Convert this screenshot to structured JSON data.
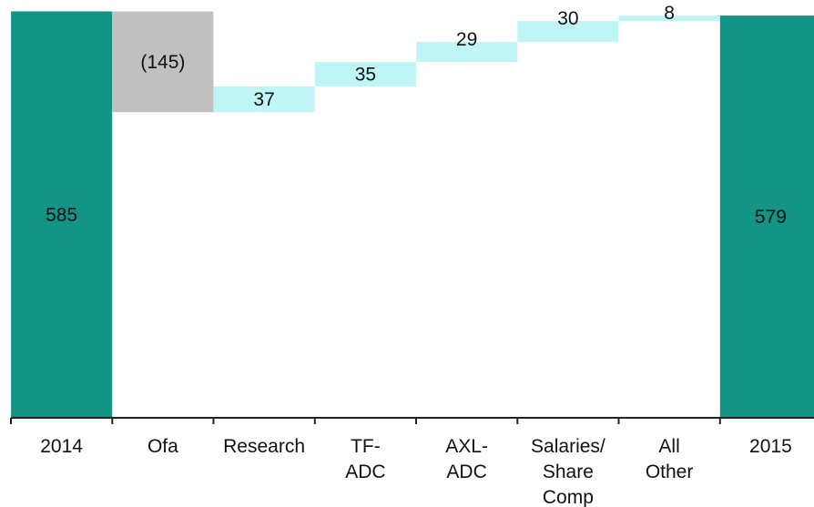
{
  "chart_data": {
    "type": "waterfall",
    "categories": [
      "2014",
      "Ofa",
      "Research",
      "TF-\nADC",
      "AXL-\nADC",
      "Salaries/\nShare\nComp",
      "All\nOther",
      "2015"
    ],
    "values": [
      585,
      -145,
      37,
      35,
      29,
      30,
      8,
      579
    ],
    "kinds": [
      "total",
      "decrease",
      "increase",
      "increase",
      "increase",
      "increase",
      "increase",
      "total"
    ],
    "data_labels": [
      "585",
      "(145)",
      "37",
      "35",
      "29",
      "30",
      "8",
      "579"
    ],
    "ylim": [
      0,
      587
    ],
    "grid": false,
    "legend": "none",
    "colors": {
      "total": "#139485",
      "decrease": "#c0c0c0",
      "increase": "#bff5f5",
      "axis": "#222222",
      "text": "#111111"
    }
  }
}
